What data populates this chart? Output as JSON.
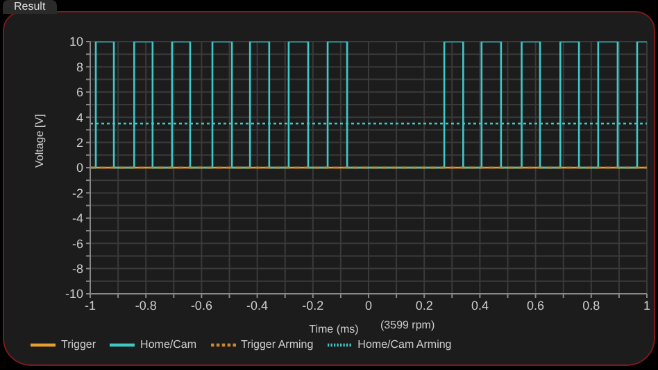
{
  "chart_data": {
    "type": "step",
    "title": "Result",
    "xlabel": "Time (ms)",
    "ylabel": "Voltage [V]",
    "annotations": [
      "(3599 rpm)"
    ],
    "series": [
      {
        "name": "Trigger",
        "color": "#e8a030",
        "line_style": "solid",
        "x": [
          -1,
          1
        ],
        "values": [
          0,
          0
        ]
      },
      {
        "name": "Home/Cam",
        "color": "#40c8c8",
        "line_style": "solid",
        "x": [
          -1,
          -0.98,
          -0.915,
          -0.842,
          -0.776,
          -0.706,
          -0.641,
          -0.561,
          -0.491,
          -0.426,
          -0.357,
          -0.287,
          -0.217,
          -0.147,
          -0.077,
          0.272,
          0.34,
          0.406,
          0.476,
          0.55,
          0.616,
          0.689,
          0.756,
          0.825,
          0.895,
          0.965,
          1
        ],
        "values": [
          0,
          10,
          0,
          10,
          0,
          10,
          0,
          10,
          0,
          10,
          0,
          10,
          0,
          10,
          0,
          10,
          0,
          10,
          0,
          10,
          0,
          10,
          0,
          10,
          0,
          10,
          10
        ]
      },
      {
        "name": "Trigger Arming",
        "color": "#c88a30",
        "line_style": "dashed",
        "x": [
          -1,
          1
        ],
        "values": [
          0,
          0
        ]
      },
      {
        "name": "Home/Cam Arming",
        "color": "#40c8c8",
        "line_style": "dotted",
        "x": [
          -1,
          1
        ],
        "values": [
          3.5,
          3.5
        ]
      }
    ],
    "xlim": [
      -1,
      1
    ],
    "xticks": [
      -1,
      {
        "value": -0.9,
        "label": null
      },
      -0.8,
      {
        "value": -0.7,
        "label": null
      },
      -0.6,
      {
        "value": -0.5,
        "label": null
      },
      -0.4,
      {
        "value": -0.3,
        "label": null
      },
      -0.2,
      {
        "value": -0.1,
        "label": null
      },
      0,
      {
        "value": 0.1,
        "label": null
      },
      0.2,
      {
        "value": 0.3,
        "label": null
      },
      0.4,
      {
        "value": 0.5,
        "label": null
      },
      0.6,
      {
        "value": 0.7,
        "label": null
      },
      0.8,
      {
        "value": 0.9,
        "label": null
      },
      1
    ],
    "ylim": [
      -10,
      10
    ],
    "yticks": [
      -10,
      {
        "value": -9,
        "label": null
      },
      -8,
      {
        "value": -7,
        "label": null
      },
      -6,
      {
        "value": -5,
        "label": null
      },
      -4,
      {
        "value": -3,
        "label": null
      },
      -2,
      {
        "value": -1,
        "label": null
      },
      0,
      {
        "value": 1,
        "label": null
      },
      2,
      {
        "value": 3,
        "label": null
      },
      4,
      {
        "value": 5,
        "label": null
      },
      6,
      {
        "value": 7,
        "label": null
      },
      8,
      {
        "value": 9,
        "label": null
      },
      10
    ],
    "grid": true,
    "legend": "bottom",
    "marker": "none"
  }
}
